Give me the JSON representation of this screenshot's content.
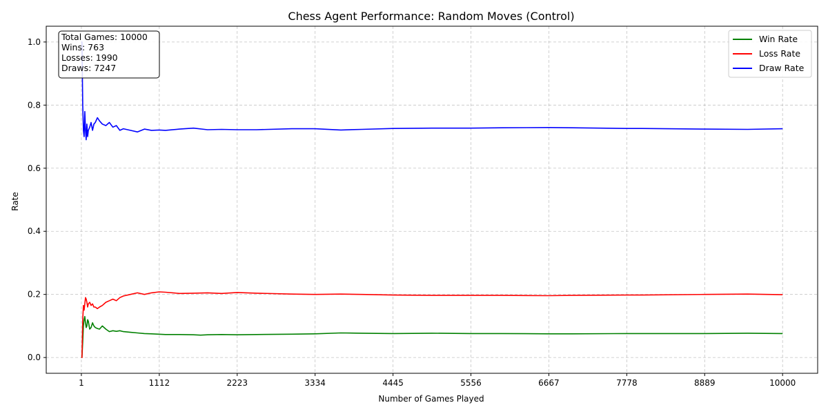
{
  "chart_data": {
    "type": "line",
    "title": "Chess Agent Performance: Random Moves (Control)",
    "xlabel": "Number of Games Played",
    "ylabel": "Rate",
    "xlim": [
      -500,
      10500
    ],
    "ylim": [
      -0.05,
      1.05
    ],
    "x_ticks": [
      1,
      1112,
      2223,
      3334,
      4445,
      5556,
      6667,
      7778,
      8889,
      10000
    ],
    "y_ticks": [
      0.0,
      0.2,
      0.4,
      0.6,
      0.8,
      1.0
    ],
    "y_tick_labels": [
      "0.0",
      "0.2",
      "0.4",
      "0.6",
      "0.8",
      "1.0"
    ],
    "grid": true,
    "legend_position": "top-right",
    "stats_box": {
      "position": "top-left",
      "lines": [
        "Total Games: 10000",
        "Wins: 763",
        "Losses: 1990",
        "Draws: 7247"
      ]
    },
    "series": [
      {
        "name": "Win Rate",
        "color": "#008000",
        "x": [
          1,
          10,
          20,
          30,
          40,
          50,
          60,
          70,
          80,
          90,
          100,
          120,
          140,
          160,
          180,
          200,
          230,
          260,
          300,
          350,
          400,
          450,
          500,
          550,
          600,
          700,
          800,
          900,
          1000,
          1100,
          1200,
          1400,
          1600,
          1700,
          1800,
          2000,
          2223,
          2500,
          3000,
          3334,
          3700,
          4000,
          4445,
          5000,
          5556,
          6000,
          6667,
          7000,
          7778,
          8000,
          8889,
          9500,
          10000
        ],
        "y": [
          0.0,
          0.0,
          0.05,
          0.1,
          0.12,
          0.13,
          0.11,
          0.095,
          0.1,
          0.12,
          0.115,
          0.09,
          0.095,
          0.11,
          0.1,
          0.095,
          0.092,
          0.09,
          0.1,
          0.09,
          0.082,
          0.085,
          0.083,
          0.085,
          0.082,
          0.08,
          0.078,
          0.076,
          0.075,
          0.074,
          0.073,
          0.073,
          0.072,
          0.071,
          0.072,
          0.073,
          0.072,
          0.073,
          0.074,
          0.075,
          0.078,
          0.077,
          0.076,
          0.077,
          0.076,
          0.076,
          0.075,
          0.075,
          0.076,
          0.076,
          0.076,
          0.077,
          0.076
        ]
      },
      {
        "name": "Loss Rate",
        "color": "#ff0000",
        "x": [
          1,
          10,
          20,
          30,
          40,
          50,
          60,
          70,
          80,
          90,
          100,
          120,
          140,
          160,
          180,
          200,
          230,
          260,
          300,
          350,
          400,
          450,
          500,
          550,
          600,
          700,
          800,
          900,
          1000,
          1112,
          1200,
          1400,
          1600,
          1800,
          2000,
          2223,
          2500,
          3000,
          3334,
          3700,
          4000,
          4445,
          5000,
          5556,
          6000,
          6667,
          7000,
          7778,
          8000,
          8889,
          9500,
          10000
        ],
        "y": [
          0.0,
          0.0,
          0.12,
          0.165,
          0.15,
          0.17,
          0.19,
          0.185,
          0.175,
          0.16,
          0.17,
          0.175,
          0.165,
          0.17,
          0.16,
          0.16,
          0.155,
          0.16,
          0.165,
          0.175,
          0.18,
          0.185,
          0.18,
          0.19,
          0.195,
          0.2,
          0.205,
          0.2,
          0.205,
          0.208,
          0.207,
          0.203,
          0.204,
          0.205,
          0.203,
          0.206,
          0.204,
          0.201,
          0.2,
          0.201,
          0.2,
          0.198,
          0.197,
          0.197,
          0.197,
          0.196,
          0.197,
          0.198,
          0.198,
          0.2,
          0.201,
          0.199
        ]
      },
      {
        "name": "Draw Rate",
        "color": "#0000ff",
        "x": [
          1,
          10,
          20,
          30,
          40,
          50,
          60,
          70,
          80,
          90,
          100,
          120,
          140,
          160,
          180,
          200,
          230,
          260,
          300,
          350,
          400,
          450,
          500,
          550,
          600,
          700,
          800,
          900,
          1000,
          1112,
          1200,
          1400,
          1600,
          1800,
          2000,
          2223,
          2500,
          3000,
          3334,
          3700,
          4000,
          4445,
          5000,
          5556,
          6000,
          6667,
          7000,
          7778,
          8000,
          8889,
          9500,
          10000
        ],
        "y": [
          1.0,
          1.0,
          0.8,
          0.72,
          0.7,
          0.78,
          0.72,
          0.69,
          0.74,
          0.7,
          0.72,
          0.73,
          0.745,
          0.72,
          0.74,
          0.745,
          0.76,
          0.75,
          0.74,
          0.735,
          0.745,
          0.73,
          0.735,
          0.72,
          0.725,
          0.72,
          0.715,
          0.724,
          0.72,
          0.721,
          0.72,
          0.724,
          0.727,
          0.722,
          0.723,
          0.722,
          0.722,
          0.725,
          0.725,
          0.721,
          0.723,
          0.726,
          0.727,
          0.727,
          0.728,
          0.729,
          0.728,
          0.726,
          0.726,
          0.724,
          0.723,
          0.725
        ]
      }
    ]
  }
}
